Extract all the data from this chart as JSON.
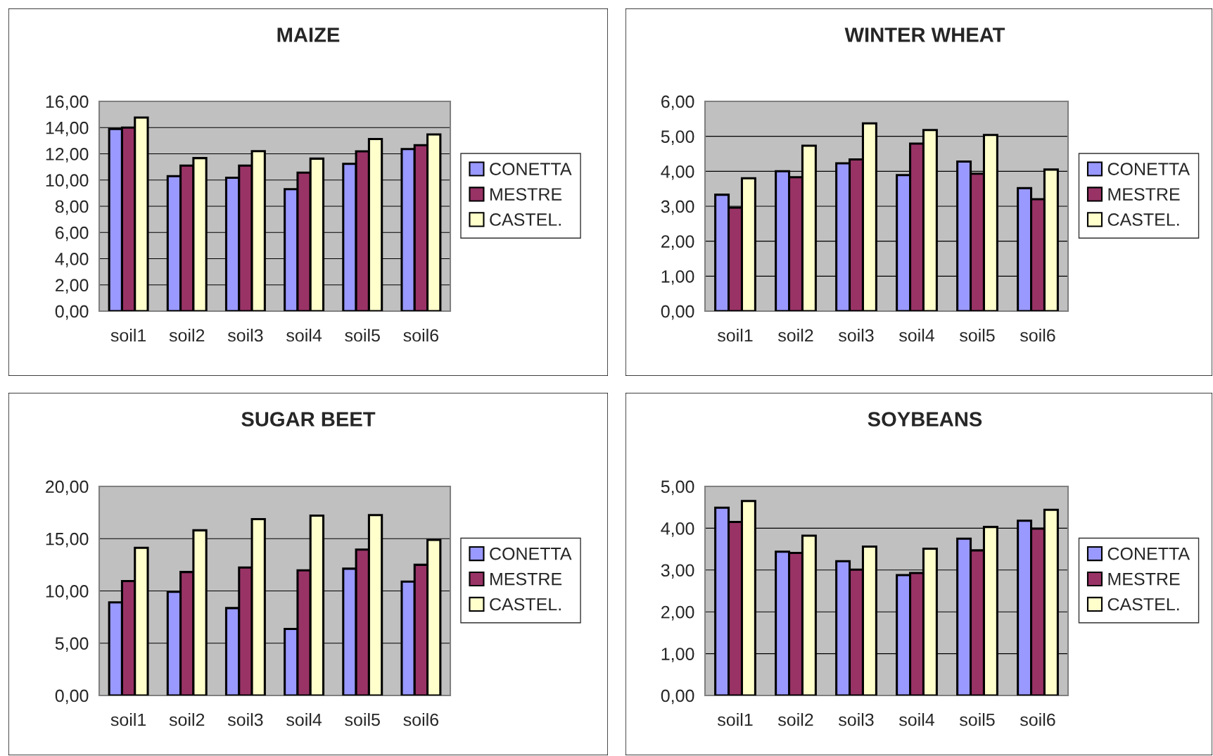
{
  "chart_data": [
    {
      "type": "bar",
      "title": "MAIZE",
      "categories": [
        "soil1",
        "soil2",
        "soil3",
        "soil4",
        "soil5",
        "soil6"
      ],
      "series": [
        {
          "name": "CONETTA",
          "color": "#9999ff",
          "values": [
            13.9,
            10.3,
            10.17,
            9.3,
            11.24,
            12.36
          ]
        },
        {
          "name": "MESTRE",
          "color": "#993366",
          "values": [
            14.0,
            11.1,
            11.1,
            10.56,
            12.19,
            12.66
          ]
        },
        {
          "name": "CASTEL.",
          "color": "#ffffcc",
          "values": [
            14.76,
            11.67,
            12.2,
            11.63,
            13.13,
            13.48
          ]
        }
      ],
      "ylim": [
        0,
        16
      ],
      "yticks": [
        {
          "value": 0,
          "label": "0,00"
        },
        {
          "value": 2,
          "label": "2,00"
        },
        {
          "value": 4,
          "label": "4,00"
        },
        {
          "value": 6,
          "label": "6,00"
        },
        {
          "value": 8,
          "label": "8,00"
        },
        {
          "value": 10,
          "label": "10,00"
        },
        {
          "value": 12,
          "label": "12,00"
        },
        {
          "value": 14,
          "label": "14,00"
        },
        {
          "value": 16,
          "label": "16,00"
        }
      ],
      "grid": "y",
      "legend": "right"
    },
    {
      "type": "bar",
      "title": "WINTER WHEAT",
      "categories": [
        "soil1",
        "soil2",
        "soil3",
        "soil4",
        "soil5",
        "soil6"
      ],
      "series": [
        {
          "name": "CONETTA",
          "color": "#9999ff",
          "values": [
            3.33,
            4.0,
            4.23,
            3.89,
            4.28,
            3.52
          ]
        },
        {
          "name": "MESTRE",
          "color": "#993366",
          "values": [
            2.96,
            3.83,
            4.34,
            4.79,
            3.93,
            3.2
          ]
        },
        {
          "name": "CASTEL.",
          "color": "#ffffcc",
          "values": [
            3.8,
            4.73,
            5.37,
            5.18,
            5.04,
            4.05
          ]
        }
      ],
      "ylim": [
        0,
        6
      ],
      "yticks": [
        {
          "value": 0,
          "label": "0,00"
        },
        {
          "value": 1,
          "label": "1,00"
        },
        {
          "value": 2,
          "label": "2,00"
        },
        {
          "value": 3,
          "label": "3,00"
        },
        {
          "value": 4,
          "label": "4,00"
        },
        {
          "value": 5,
          "label": "5,00"
        },
        {
          "value": 6,
          "label": "6,00"
        }
      ],
      "grid": "y",
      "legend": "right"
    },
    {
      "type": "bar",
      "title": "SUGAR BEET",
      "categories": [
        "soil1",
        "soil2",
        "soil3",
        "soil4",
        "soil5",
        "soil6"
      ],
      "series": [
        {
          "name": "CONETTA",
          "color": "#9999ff",
          "values": [
            8.9,
            9.92,
            8.36,
            6.36,
            12.13,
            10.89
          ]
        },
        {
          "name": "MESTRE",
          "color": "#993366",
          "values": [
            10.94,
            11.81,
            12.24,
            11.97,
            13.96,
            12.5
          ]
        },
        {
          "name": "CASTEL.",
          "color": "#ffffcc",
          "values": [
            14.12,
            15.8,
            16.87,
            17.2,
            17.25,
            14.88
          ]
        }
      ],
      "ylim": [
        0,
        20
      ],
      "yticks": [
        {
          "value": 0,
          "label": "0,00"
        },
        {
          "value": 5,
          "label": "5,00"
        },
        {
          "value": 10,
          "label": "10,00"
        },
        {
          "value": 15,
          "label": "15,00"
        },
        {
          "value": 20,
          "label": "20,00"
        }
      ],
      "grid": "y",
      "legend": "right"
    },
    {
      "type": "bar",
      "title": "SOYBEANS",
      "categories": [
        "soil1",
        "soil2",
        "soil3",
        "soil4",
        "soil5",
        "soil6"
      ],
      "series": [
        {
          "name": "CONETTA",
          "color": "#9999ff",
          "values": [
            4.49,
            3.44,
            3.21,
            2.88,
            3.75,
            4.18
          ]
        },
        {
          "name": "MESTRE",
          "color": "#993366",
          "values": [
            4.15,
            3.41,
            3.01,
            2.93,
            3.47,
            3.99
          ]
        },
        {
          "name": "CASTEL.",
          "color": "#ffffcc",
          "values": [
            4.65,
            3.82,
            3.56,
            3.51,
            4.03,
            4.44
          ]
        }
      ],
      "ylim": [
        0,
        5
      ],
      "yticks": [
        {
          "value": 0,
          "label": "0,00"
        },
        {
          "value": 1,
          "label": "1,00"
        },
        {
          "value": 2,
          "label": "2,00"
        },
        {
          "value": 3,
          "label": "3,00"
        },
        {
          "value": 4,
          "label": "4,00"
        },
        {
          "value": 5,
          "label": "5,00"
        }
      ],
      "grid": "y",
      "legend": "right"
    }
  ]
}
